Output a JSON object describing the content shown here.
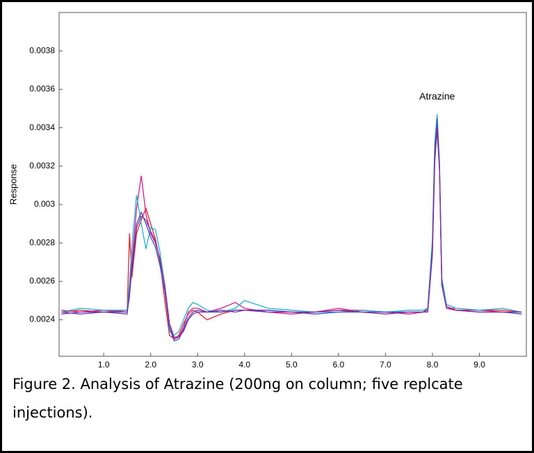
{
  "chart_data": {
    "type": "line",
    "ylabel": "Response",
    "annotation": {
      "text": "Atrazine",
      "x": 8.1,
      "y": 0.00356
    },
    "caption": "Figure 2. Analysis of Atrazine (200ng on column; five replcate injections).",
    "xlim": [
      0.05,
      10
    ],
    "ylim": [
      0.00221,
      0.004
    ],
    "xticks": [
      {
        "value": 1,
        "label": "1.0"
      },
      {
        "value": 2,
        "label": "2.0"
      },
      {
        "value": 3,
        "label": "3.0"
      },
      {
        "value": 4,
        "label": "4.0"
      },
      {
        "value": 5,
        "label": "5.0"
      },
      {
        "value": 6,
        "label": "6.0"
      },
      {
        "value": 7,
        "label": "7.0"
      },
      {
        "value": 8,
        "label": "8.0"
      },
      {
        "value": 9,
        "label": "9.0"
      }
    ],
    "yticks": [
      0.0024,
      0.0026,
      0.0028,
      0.003,
      0.0032,
      0.0034,
      0.0036,
      0.0038
    ],
    "x": [
      0.1,
      0.5,
      1.0,
      1.5,
      1.55,
      1.6,
      1.7,
      1.8,
      1.9,
      2.0,
      2.1,
      2.2,
      2.3,
      2.4,
      2.5,
      2.6,
      2.7,
      2.8,
      2.9,
      3.0,
      3.2,
      3.5,
      3.8,
      4.0,
      4.5,
      5.0,
      5.5,
      6.0,
      6.5,
      7.0,
      7.5,
      7.8,
      7.9,
      8.0,
      8.05,
      8.1,
      8.15,
      8.2,
      8.3,
      8.5,
      9.0,
      9.5,
      9.9
    ],
    "series": [
      {
        "color": "#e8202a",
        "values": [
          0.00244,
          0.00245,
          0.00244,
          0.00245,
          0.00285,
          0.00262,
          0.00285,
          0.00292,
          0.00298,
          0.0029,
          0.00282,
          0.0027,
          0.0025,
          0.00232,
          0.0023,
          0.00232,
          0.00238,
          0.00243,
          0.00245,
          0.00244,
          0.0024,
          0.00243,
          0.00245,
          0.00245,
          0.00245,
          0.00244,
          0.00244,
          0.00245,
          0.00245,
          0.00244,
          0.00244,
          0.00244,
          0.00246,
          0.0028,
          0.0033,
          0.00344,
          0.0032,
          0.0026,
          0.00246,
          0.00246,
          0.00245,
          0.00245,
          0.00244
        ]
      },
      {
        "color": "#d6198c",
        "values": [
          0.00245,
          0.00244,
          0.00245,
          0.00244,
          0.00258,
          0.0027,
          0.00298,
          0.00315,
          0.00295,
          0.00285,
          0.0028,
          0.00272,
          0.00258,
          0.00238,
          0.00231,
          0.00231,
          0.00236,
          0.00244,
          0.00246,
          0.00246,
          0.00244,
          0.00246,
          0.00249,
          0.00246,
          0.00244,
          0.00243,
          0.00244,
          0.00246,
          0.00244,
          0.00244,
          0.00243,
          0.00244,
          0.00245,
          0.00276,
          0.00325,
          0.00338,
          0.00318,
          0.0026,
          0.00247,
          0.00245,
          0.00245,
          0.00244,
          0.00244
        ]
      },
      {
        "color": "#1fb0d0",
        "values": [
          0.00244,
          0.00246,
          0.00245,
          0.00245,
          0.0026,
          0.00278,
          0.00305,
          0.0029,
          0.00277,
          0.00288,
          0.00287,
          0.00275,
          0.00258,
          0.00234,
          0.00232,
          0.00234,
          0.0024,
          0.00246,
          0.00249,
          0.00248,
          0.00245,
          0.00244,
          0.00246,
          0.0025,
          0.00246,
          0.00245,
          0.00244,
          0.00244,
          0.00245,
          0.00244,
          0.00245,
          0.00245,
          0.00246,
          0.00282,
          0.00332,
          0.00347,
          0.00322,
          0.00262,
          0.00248,
          0.00246,
          0.00245,
          0.00246,
          0.00244
        ]
      },
      {
        "color": "#3a4fc8",
        "values": [
          0.00243,
          0.00244,
          0.00244,
          0.00244,
          0.00252,
          0.00268,
          0.0029,
          0.00296,
          0.0029,
          0.00283,
          0.00278,
          0.00268,
          0.00255,
          0.00236,
          0.00229,
          0.0023,
          0.00235,
          0.00241,
          0.00244,
          0.00245,
          0.00244,
          0.00244,
          0.00245,
          0.00245,
          0.00245,
          0.00244,
          0.00243,
          0.00244,
          0.00244,
          0.00244,
          0.00244,
          0.00244,
          0.00245,
          0.00278,
          0.00328,
          0.00345,
          0.0032,
          0.00258,
          0.00246,
          0.00245,
          0.00244,
          0.00244,
          0.00243
        ]
      },
      {
        "color": "#8a2a9a",
        "values": [
          0.00244,
          0.00243,
          0.00244,
          0.00243,
          0.00255,
          0.00265,
          0.00288,
          0.00294,
          0.00292,
          0.00286,
          0.00281,
          0.00271,
          0.00258,
          0.00238,
          0.0023,
          0.00231,
          0.00234,
          0.0024,
          0.00243,
          0.00244,
          0.00244,
          0.00245,
          0.00244,
          0.00245,
          0.00244,
          0.00244,
          0.00244,
          0.00245,
          0.00244,
          0.00243,
          0.00244,
          0.00244,
          0.00244,
          0.00274,
          0.00322,
          0.0034,
          0.00318,
          0.00258,
          0.00246,
          0.00245,
          0.00244,
          0.00244,
          0.00244
        ]
      }
    ]
  }
}
